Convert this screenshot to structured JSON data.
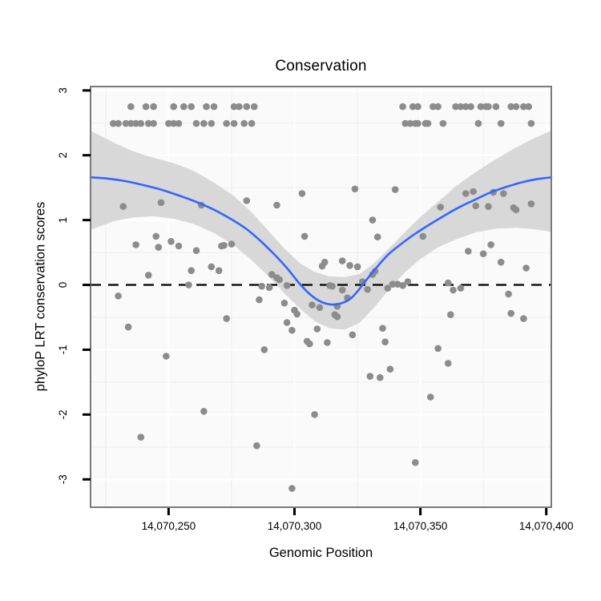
{
  "title": "Conservation",
  "axes": {
    "x": {
      "title": "Genomic Position",
      "tick_values": [
        14070250,
        14070300,
        14070350,
        14070400
      ],
      "tick_labels": [
        "14,070,250",
        "14,070,300",
        "14,070,350",
        "14,070,400"
      ],
      "minor_values": [
        14070225,
        14070275,
        14070325,
        14070375
      ],
      "range": [
        14070219,
        14070402
      ]
    },
    "y": {
      "title": "phyloP LRT conservation scores",
      "tick_values": [
        3,
        2,
        1,
        0,
        -1,
        -2,
        -3
      ],
      "tick_labels": [
        "3",
        "2",
        "1",
        "0",
        "-1",
        "-2",
        "-3"
      ],
      "minor_values": [
        2.5,
        1.5,
        0.5,
        -0.5,
        -1.5,
        -2.5
      ],
      "range": [
        -3.43,
        3.06
      ]
    }
  },
  "colors": {
    "point": "#8C8C8C",
    "ribbon": "#D8D8D8",
    "smooth_line": "#3366FF",
    "zero_line": "#000000",
    "panel_bg": "#FAFAFA",
    "grid_major": "#FFFFFF",
    "grid_minor": "#EFEFEF",
    "panel_border": "#7A7A7A",
    "tick": "#000000",
    "text": "#000000"
  },
  "chart_data": {
    "type": "scatter",
    "title": "Conservation",
    "xlabel": "Genomic Position",
    "ylabel": "phyloP LRT conservation scores",
    "xlim": [
      14070219,
      14070402
    ],
    "ylim": [
      -3.43,
      3.06
    ],
    "grid": "major+minor",
    "zero_line_y": 0,
    "smooth_method": "loess with confidence ribbon",
    "points": [
      [
        14070235,
        2.75
      ],
      [
        14070241,
        2.75
      ],
      [
        14070244,
        2.75
      ],
      [
        14070252,
        2.75
      ],
      [
        14070256,
        2.75
      ],
      [
        14070259,
        2.75
      ],
      [
        14070265,
        2.75
      ],
      [
        14070268,
        2.75
      ],
      [
        14070276,
        2.75
      ],
      [
        14070278,
        2.75
      ],
      [
        14070281,
        2.75
      ],
      [
        14070284,
        2.75
      ],
      [
        14070343,
        2.75
      ],
      [
        14070347,
        2.75
      ],
      [
        14070349,
        2.75
      ],
      [
        14070355,
        2.75
      ],
      [
        14070357,
        2.75
      ],
      [
        14070364,
        2.75
      ],
      [
        14070366,
        2.75
      ],
      [
        14070368,
        2.75
      ],
      [
        14070370,
        2.75
      ],
      [
        14070374,
        2.75
      ],
      [
        14070376,
        2.75
      ],
      [
        14070377,
        2.75
      ],
      [
        14070380,
        2.75
      ],
      [
        14070386,
        2.75
      ],
      [
        14070388,
        2.75
      ],
      [
        14070391,
        2.75
      ],
      [
        14070393,
        2.75
      ],
      [
        14070228,
        2.49
      ],
      [
        14070230,
        2.49
      ],
      [
        14070233,
        2.49
      ],
      [
        14070235,
        2.49
      ],
      [
        14070237,
        2.49
      ],
      [
        14070239,
        2.49
      ],
      [
        14070242,
        2.49
      ],
      [
        14070244,
        2.49
      ],
      [
        14070250,
        2.49
      ],
      [
        14070252,
        2.49
      ],
      [
        14070254,
        2.49
      ],
      [
        14070261,
        2.49
      ],
      [
        14070264,
        2.49
      ],
      [
        14070267,
        2.49
      ],
      [
        14070273,
        2.49
      ],
      [
        14070276,
        2.49
      ],
      [
        14070280,
        2.49
      ],
      [
        14070283,
        2.49
      ],
      [
        14070344,
        2.49
      ],
      [
        14070346,
        2.49
      ],
      [
        14070348,
        2.49
      ],
      [
        14070349,
        2.49
      ],
      [
        14070352,
        2.49
      ],
      [
        14070353,
        2.49
      ],
      [
        14070359,
        2.49
      ],
      [
        14070373,
        2.49
      ],
      [
        14070382,
        2.49
      ],
      [
        14070394,
        2.49
      ],
      [
        14070232,
        1.21
      ],
      [
        14070247,
        1.27
      ],
      [
        14070263,
        1.23
      ],
      [
        14070281,
        1.3
      ],
      [
        14070293,
        1.23
      ],
      [
        14070303,
        1.41
      ],
      [
        14070324,
        1.48
      ],
      [
        14070340,
        1.47
      ],
      [
        14070331,
        1.0
      ],
      [
        14070358,
        1.2
      ],
      [
        14070368,
        1.41
      ],
      [
        14070371,
        1.44
      ],
      [
        14070372,
        1.22
      ],
      [
        14070377,
        1.21
      ],
      [
        14070379,
        1.43
      ],
      [
        14070383,
        1.41
      ],
      [
        14070387,
        1.19
      ],
      [
        14070388,
        1.16
      ],
      [
        14070394,
        1.25
      ],
      [
        14070237,
        0.62
      ],
      [
        14070245,
        0.75
      ],
      [
        14070246,
        0.58
      ],
      [
        14070251,
        0.67
      ],
      [
        14070254,
        0.6
      ],
      [
        14070259,
        0.22
      ],
      [
        14070261,
        0.53
      ],
      [
        14070271,
        0.6
      ],
      [
        14070272,
        0.61
      ],
      [
        14070275,
        0.63
      ],
      [
        14070267,
        0.28
      ],
      [
        14070270,
        0.22
      ],
      [
        14070258,
        0.0
      ],
      [
        14070242,
        0.15
      ],
      [
        14070230,
        -0.17
      ],
      [
        14070234,
        -0.65
      ],
      [
        14070249,
        -1.1
      ],
      [
        14070273,
        -0.52
      ],
      [
        14070304,
        0.75
      ],
      [
        14070333,
        0.74
      ],
      [
        14070351,
        0.75
      ],
      [
        14070287,
        -0.02
      ],
      [
        14070290,
        -0.04
      ],
      [
        14070291,
        0.16
      ],
      [
        14070293,
        0.11
      ],
      [
        14070294,
        0.08
      ],
      [
        14070297,
        -0.01
      ],
      [
        14070286,
        -0.23
      ],
      [
        14070296,
        -0.28
      ],
      [
        14070300,
        -0.39
      ],
      [
        14070301,
        -0.45
      ],
      [
        14070297,
        -0.58
      ],
      [
        14070299,
        -0.7
      ],
      [
        14070305,
        -0.87
      ],
      [
        14070306,
        -0.91
      ],
      [
        14070288,
        -1.0
      ],
      [
        14070311,
        0.29
      ],
      [
        14070312,
        0.35
      ],
      [
        14070319,
        0.37
      ],
      [
        14070322,
        0.3
      ],
      [
        14070325,
        0.28
      ],
      [
        14070314,
        -0.01
      ],
      [
        14070315,
        -0.02
      ],
      [
        14070319,
        -0.08
      ],
      [
        14070321,
        -0.2
      ],
      [
        14070307,
        -0.31
      ],
      [
        14070310,
        -0.35
      ],
      [
        14070317,
        -0.33
      ],
      [
        14070316,
        -0.46
      ],
      [
        14070317,
        -0.49
      ],
      [
        14070309,
        -0.68
      ],
      [
        14070313,
        -0.89
      ],
      [
        14070323,
        -0.77
      ],
      [
        14070327,
        0.05
      ],
      [
        14070329,
        -0.07
      ],
      [
        14070331,
        0.16
      ],
      [
        14070332,
        0.21
      ],
      [
        14070337,
        -0.05
      ],
      [
        14070339,
        0.01
      ],
      [
        14070341,
        0.01
      ],
      [
        14070343,
        -0.01
      ],
      [
        14070345,
        0.05
      ],
      [
        14070335,
        -0.67
      ],
      [
        14070336,
        -0.88
      ],
      [
        14070361,
        0.03
      ],
      [
        14070363,
        -0.08
      ],
      [
        14070366,
        -0.05
      ],
      [
        14070369,
        0.52
      ],
      [
        14070375,
        0.48
      ],
      [
        14070378,
        0.62
      ],
      [
        14070382,
        0.35
      ],
      [
        14070392,
        0.26
      ],
      [
        14070385,
        -0.14
      ],
      [
        14070386,
        -0.44
      ],
      [
        14070391,
        -0.52
      ],
      [
        14070362,
        -0.46
      ],
      [
        14070357,
        -0.98
      ],
      [
        14070330,
        -1.41
      ],
      [
        14070334,
        -1.43
      ],
      [
        14070338,
        -1.3
      ],
      [
        14070361,
        -1.21
      ],
      [
        14070354,
        -1.73
      ],
      [
        14070348,
        -2.74
      ],
      [
        14070264,
        -1.95
      ],
      [
        14070308,
        -2.0
      ],
      [
        14070239,
        -2.35
      ],
      [
        14070285,
        -2.48
      ],
      [
        14070299,
        -3.14
      ]
    ],
    "smooth_line": [
      [
        14070219,
        1.66
      ],
      [
        14070226,
        1.64
      ],
      [
        14070233,
        1.6
      ],
      [
        14070240,
        1.54
      ],
      [
        14070247,
        1.47
      ],
      [
        14070254,
        1.38
      ],
      [
        14070261,
        1.28
      ],
      [
        14070268,
        1.16
      ],
      [
        14070275,
        1.01
      ],
      [
        14070281,
        0.86
      ],
      [
        14070287,
        0.66
      ],
      [
        14070292,
        0.47
      ],
      [
        14070297,
        0.26
      ],
      [
        14070302,
        0.02
      ],
      [
        14070306,
        -0.14
      ],
      [
        14070310,
        -0.25
      ],
      [
        14070314,
        -0.3
      ],
      [
        14070318,
        -0.29
      ],
      [
        14070322,
        -0.22
      ],
      [
        14070325,
        -0.1
      ],
      [
        14070328,
        0.05
      ],
      [
        14070332,
        0.24
      ],
      [
        14070337,
        0.46
      ],
      [
        14070342,
        0.62
      ],
      [
        14070348,
        0.79
      ],
      [
        14070354,
        0.94
      ],
      [
        14070360,
        1.08
      ],
      [
        14070366,
        1.21
      ],
      [
        14070372,
        1.32
      ],
      [
        14070378,
        1.43
      ],
      [
        14070384,
        1.51
      ],
      [
        14070390,
        1.58
      ],
      [
        14070396,
        1.63
      ],
      [
        14070402,
        1.66
      ]
    ],
    "ribbon_top": [
      [
        14070219,
        2.38
      ],
      [
        14070228,
        2.2
      ],
      [
        14070236,
        2.06
      ],
      [
        14070244,
        1.96
      ],
      [
        14070252,
        1.88
      ],
      [
        14070260,
        1.76
      ],
      [
        14070268,
        1.58
      ],
      [
        14070276,
        1.37
      ],
      [
        14070283,
        1.12
      ],
      [
        14070290,
        0.82
      ],
      [
        14070296,
        0.56
      ],
      [
        14070302,
        0.34
      ],
      [
        14070308,
        0.2
      ],
      [
        14070314,
        0.13
      ],
      [
        14070320,
        0.12
      ],
      [
        14070326,
        0.17
      ],
      [
        14070332,
        0.35
      ],
      [
        14070338,
        0.58
      ],
      [
        14070344,
        0.82
      ],
      [
        14070350,
        1.05
      ],
      [
        14070357,
        1.28
      ],
      [
        14070364,
        1.52
      ],
      [
        14070372,
        1.74
      ],
      [
        14070380,
        1.94
      ],
      [
        14070388,
        2.12
      ],
      [
        14070395,
        2.26
      ],
      [
        14070402,
        2.38
      ]
    ],
    "ribbon_bottom": [
      [
        14070219,
        0.85
      ],
      [
        14070228,
        0.98
      ],
      [
        14070236,
        1.04
      ],
      [
        14070244,
        1.06
      ],
      [
        14070252,
        1.02
      ],
      [
        14070260,
        0.94
      ],
      [
        14070268,
        0.8
      ],
      [
        14070276,
        0.61
      ],
      [
        14070283,
        0.38
      ],
      [
        14070290,
        0.12
      ],
      [
        14070296,
        -0.13
      ],
      [
        14070302,
        -0.36
      ],
      [
        14070308,
        -0.56
      ],
      [
        14070314,
        -0.67
      ],
      [
        14070320,
        -0.69
      ],
      [
        14070326,
        -0.58
      ],
      [
        14070332,
        -0.33
      ],
      [
        14070338,
        -0.05
      ],
      [
        14070344,
        0.2
      ],
      [
        14070350,
        0.4
      ],
      [
        14070357,
        0.58
      ],
      [
        14070364,
        0.7
      ],
      [
        14070372,
        0.81
      ],
      [
        14070380,
        0.87
      ],
      [
        14070388,
        0.88
      ],
      [
        14070395,
        0.86
      ],
      [
        14070402,
        0.82
      ]
    ]
  }
}
